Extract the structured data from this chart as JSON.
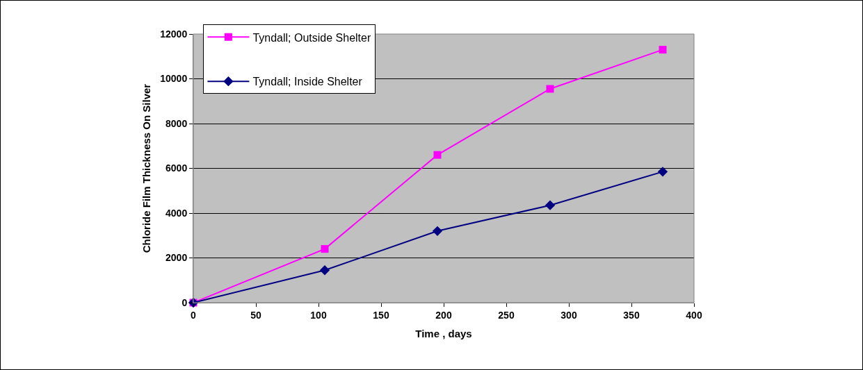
{
  "chart_data": {
    "type": "line",
    "xlabel": "Time , days",
    "ylabel": "Chloride Film Thickness On Silver",
    "series": [
      {
        "name": "Tyndall; Outside Shelter",
        "color": "#ff00ff",
        "marker": "square",
        "x": [
          0,
          105,
          195,
          285,
          375
        ],
        "values": [
          0,
          2400,
          6600,
          9550,
          11300
        ]
      },
      {
        "name": "Tyndall; Inside Shelter",
        "color": "#000080",
        "marker": "diamond",
        "x": [
          0,
          105,
          195,
          285,
          375
        ],
        "values": [
          0,
          1450,
          3200,
          4350,
          5850
        ]
      }
    ],
    "xlim": [
      0,
      400
    ],
    "xticks": [
      0,
      50,
      100,
      150,
      200,
      250,
      300,
      350,
      400
    ],
    "ylim": [
      0,
      12000
    ],
    "yticks": [
      0,
      2000,
      4000,
      6000,
      8000,
      10000,
      12000
    ],
    "grid": "y",
    "legend": "top left",
    "line_style": "solid"
  }
}
